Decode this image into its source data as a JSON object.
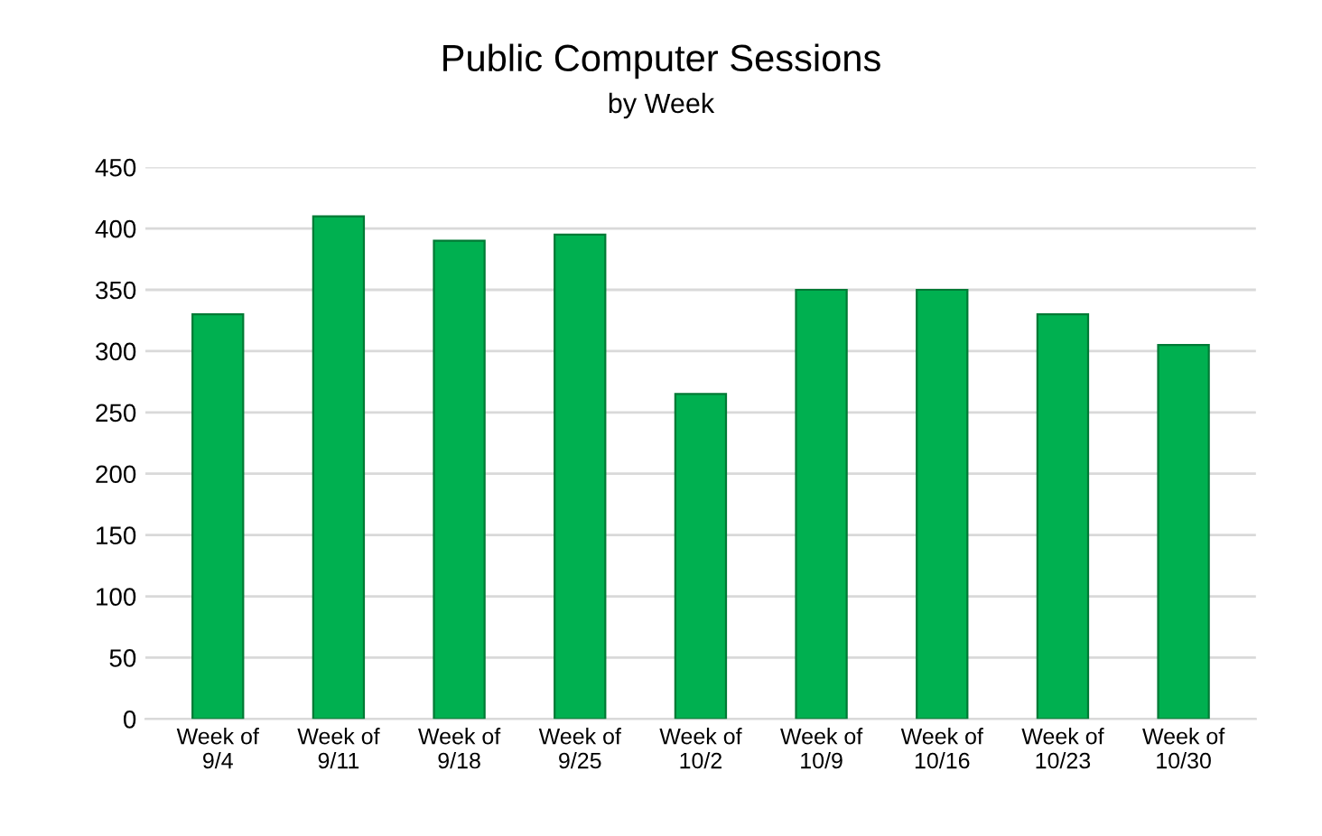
{
  "chart_data": {
    "type": "bar",
    "title": "Public Computer Sessions",
    "subtitle": "by Week",
    "categories": [
      "Week of\n9/4",
      "Week of\n9/11",
      "Week of\n9/18",
      "Week of\n9/25",
      "Week of\n10/2",
      "Week of\n10/9",
      "Week of\n10/16",
      "Week of\n10/23",
      "Week of\n10/30"
    ],
    "values": [
      330,
      410,
      390,
      395,
      265,
      350,
      350,
      330,
      305
    ],
    "color": "#00b050",
    "ylim": [
      0,
      450
    ],
    "yticks": [
      0,
      50,
      100,
      150,
      200,
      250,
      300,
      350,
      400,
      450
    ],
    "grid": "y"
  }
}
